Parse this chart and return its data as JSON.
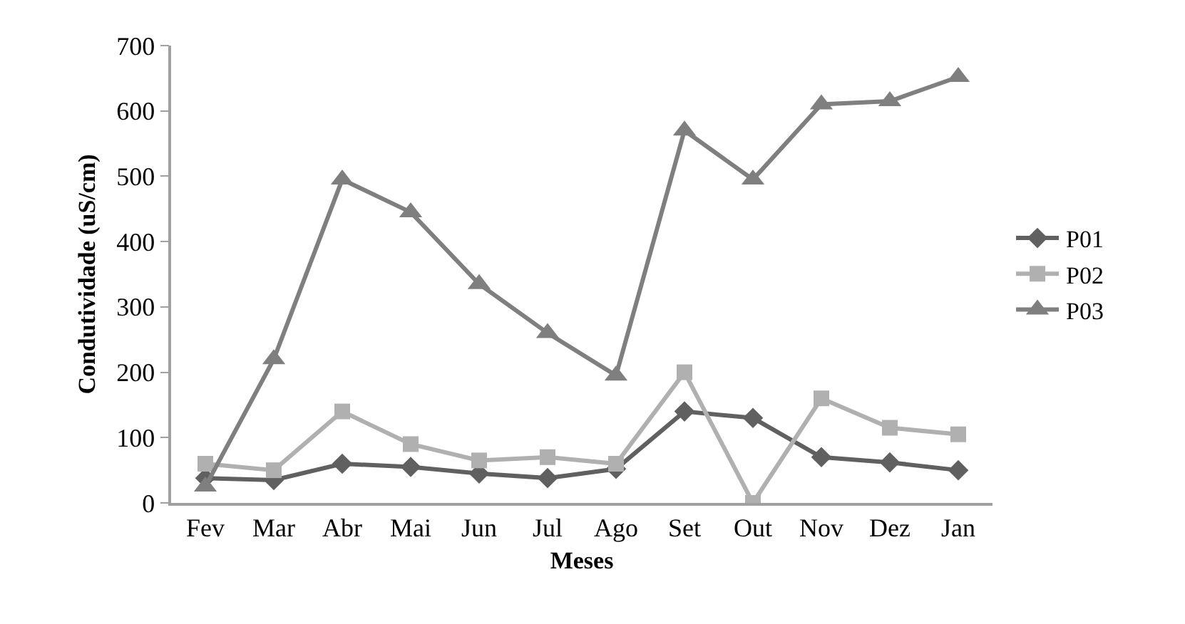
{
  "chart_data": {
    "type": "line",
    "xlabel": "Meses",
    "ylabel": "Condutividade (uS/cm)",
    "categories": [
      "Fev",
      "Mar",
      "Abr",
      "Mai",
      "Jun",
      "Jul",
      "Ago",
      "Set",
      "Out",
      "Nov",
      "Dez",
      "Jan"
    ],
    "series": [
      {
        "name": "P01",
        "color": "#606060",
        "marker": "diamond",
        "values": [
          38,
          35,
          60,
          55,
          45,
          38,
          52,
          140,
          130,
          70,
          62,
          50
        ]
      },
      {
        "name": "P02",
        "color": "#b0b0b0",
        "marker": "square",
        "values": [
          60,
          50,
          140,
          90,
          65,
          70,
          60,
          200,
          0,
          160,
          115,
          105
        ]
      },
      {
        "name": "P03",
        "color": "#7f7f7f",
        "marker": "triangle",
        "values": [
          25,
          220,
          495,
          445,
          335,
          260,
          195,
          570,
          495,
          610,
          615,
          652
        ]
      }
    ],
    "ylim": [
      0,
      700
    ],
    "yticks": [
      0,
      100,
      200,
      300,
      400,
      500,
      600,
      700
    ],
    "grid": false,
    "legend": "right",
    "line_style": "solid"
  }
}
